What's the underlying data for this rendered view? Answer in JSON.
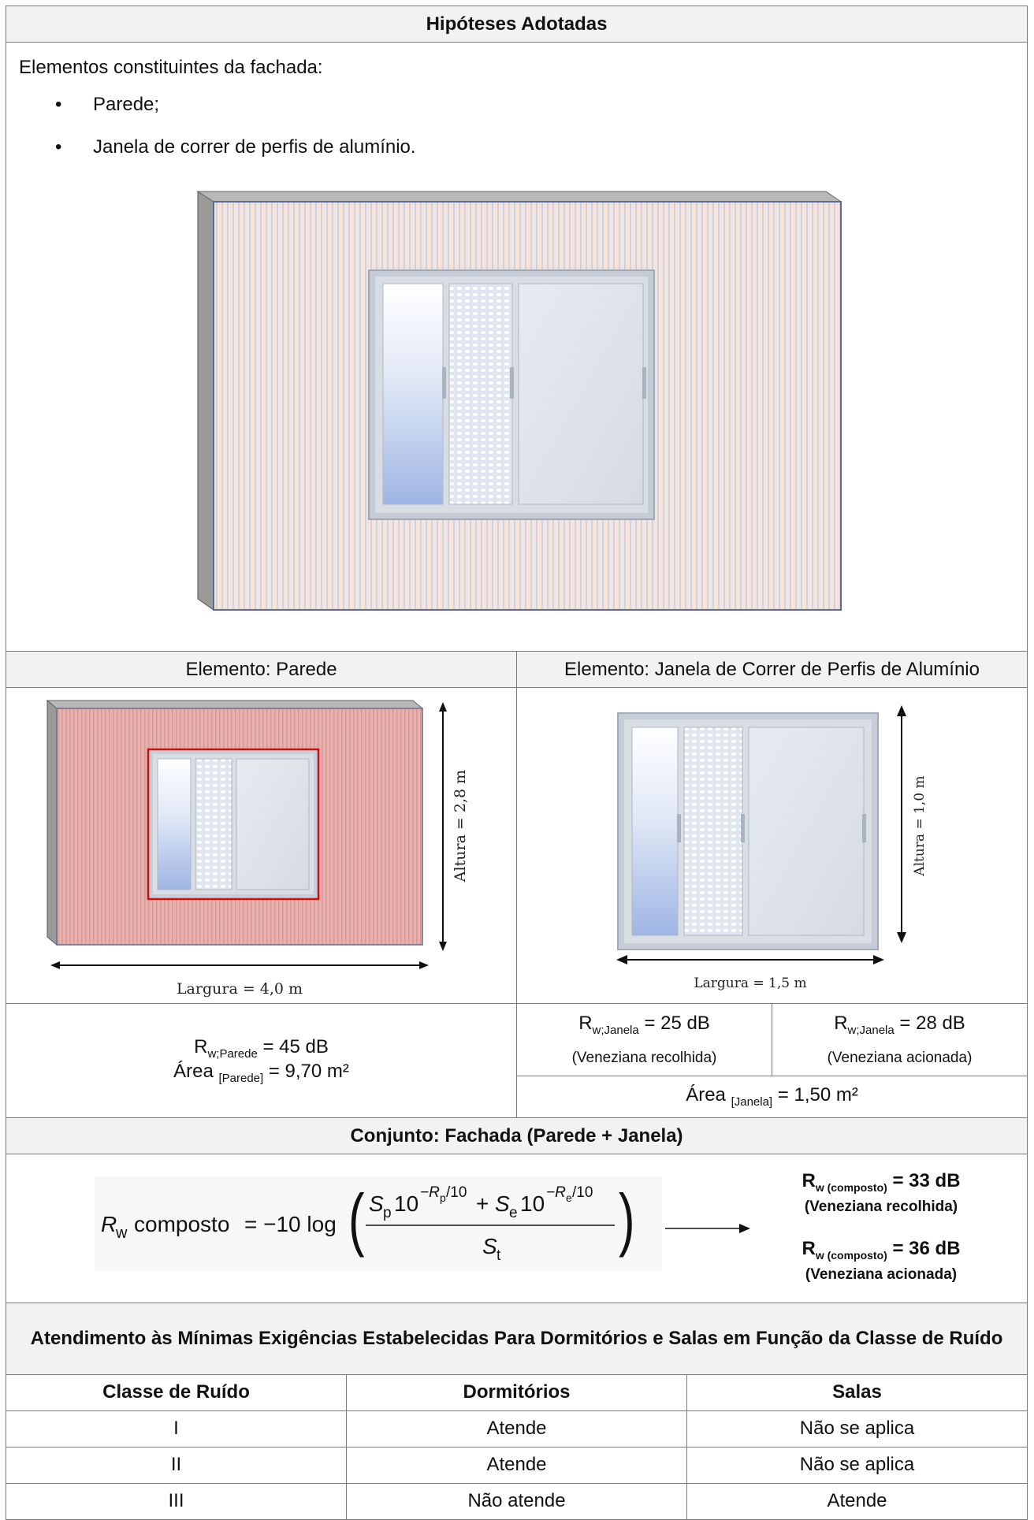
{
  "section_title": "Hipóteses Adotadas",
  "intro": "Elementos constituintes da fachada:",
  "items": [
    "Parede;",
    "Janela de correr de perfis de alumínio."
  ],
  "parede": {
    "header": "Elemento: Parede",
    "height_label": "Altura = 2,8 m",
    "width_label": "Largura = 4,0 m",
    "rw_sym": "R",
    "rw_sub": "w;Parede",
    "rw_value": "= 45 dB",
    "area_label": "Área",
    "area_sub": "[Parede]",
    "area_value": "= 9,70 m²"
  },
  "janela": {
    "header": "Elemento: Janela de Correr de Perfis de Alumínio",
    "height_label": "Altura = 1,0 m",
    "width_label": "Largura = 1,5 m",
    "rw1_sym": "R",
    "rw1_sub": "w;Janela",
    "rw1_value": "= 25 dB",
    "rw1_note": "(Veneziana recolhida)",
    "rw2_sym": "R",
    "rw2_sub": "w;Janela",
    "rw2_value": "= 28 dB",
    "rw2_note": "(Veneziana acionada)",
    "area_label": "Área",
    "area_sub": "[Janela]",
    "area_value": "= 1,50 m²"
  },
  "conjunto": {
    "header": "Conjunto: Fachada (Parede + Janela)",
    "formula": {
      "lhs_R": "R",
      "lhs_w": "w",
      "lhs_word": "composto",
      "eq": "= −10 log",
      "num_S1": "S",
      "num_p": "p",
      "num_10a": "10",
      "exp_a": "−R",
      "exp_a_sub": "p",
      "exp_a_den": "/10",
      "plus": "+",
      "num_S2": "S",
      "num_e": "e",
      "num_10b": "10",
      "exp_b": "−R",
      "exp_b_sub": "e",
      "exp_b_den": "/10",
      "den_S": "S",
      "den_t": "t"
    },
    "result1_sym": "R",
    "result1_sub": "w (composto)",
    "result1_value": "= 33 dB",
    "result1_note": "(Veneziana recolhida)",
    "result2_sym": "R",
    "result2_sub": "w (composto)",
    "result2_value": "= 36 dB",
    "result2_note": "(Veneziana acionada)"
  },
  "atendimento": {
    "header": "Atendimento às Mínimas Exigências Estabelecidas Para Dormitórios e Salas em Função da Classe de Ruído",
    "columns": [
      "Classe de Ruído",
      "Dormitórios",
      "Salas"
    ],
    "rows": [
      [
        "I",
        "Atende",
        "Não se aplica"
      ],
      [
        "II",
        "Atende",
        "Não se aplica"
      ],
      [
        "III",
        "Não atende",
        "Atende"
      ]
    ]
  },
  "colors": {
    "wall_stripe_light": "#f7dcd0",
    "wall_stripe_blue": "#c9d4e8",
    "wall_red": "#e8b4b0",
    "frame": "#c8d0da",
    "glass_blue": "#a9bde6",
    "highlight_red": "#d01010"
  }
}
